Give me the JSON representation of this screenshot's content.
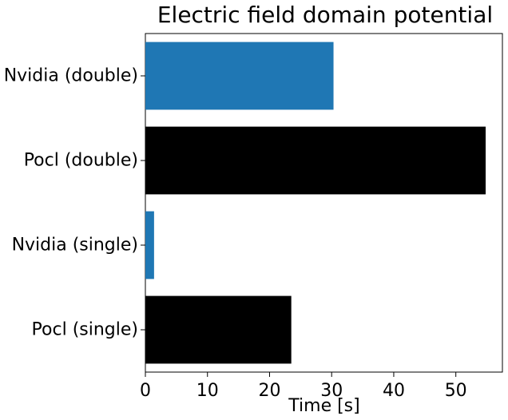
{
  "chart_data": {
    "type": "bar",
    "orientation": "horizontal",
    "title": "Electric field domain potential",
    "xlabel": "Time [s]",
    "ylabel": "",
    "categories": [
      "Nvidia (double)",
      "Pocl (double)",
      "Nvidia (single)",
      "Pocl (single)"
    ],
    "values": [
      30.3,
      54.8,
      1.4,
      23.5
    ],
    "colors": [
      "#1f77b4",
      "#000000",
      "#1f77b4",
      "#000000"
    ],
    "xlim": [
      0,
      57.5
    ],
    "xticks": [
      0,
      10,
      20,
      30,
      40,
      50
    ],
    "xtick_labels": [
      "0",
      "10",
      "20",
      "30",
      "40",
      "50"
    ],
    "grid": false,
    "legend": "none"
  }
}
